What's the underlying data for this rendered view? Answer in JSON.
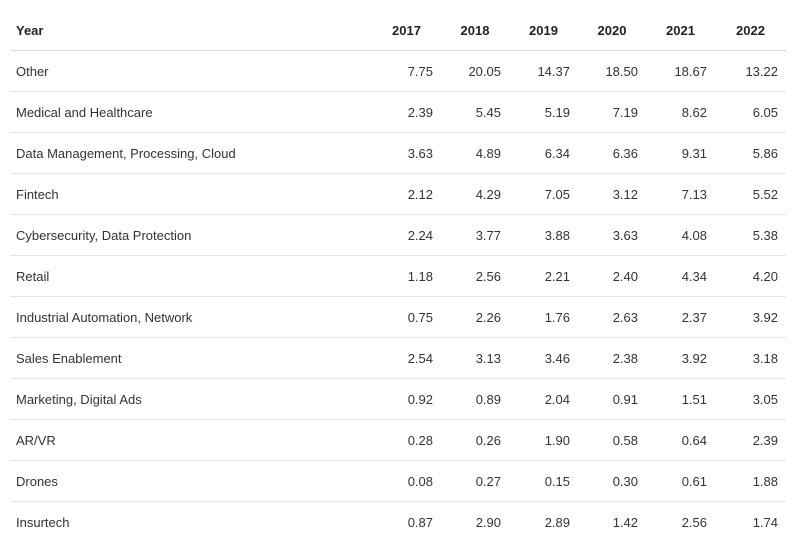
{
  "chart_data": {
    "type": "table",
    "header": {
      "label": "Year",
      "years": [
        "2017",
        "2018",
        "2019",
        "2020",
        "2021",
        "2022"
      ]
    },
    "rows": [
      {
        "label": "Other",
        "values": [
          "7.75",
          "20.05",
          "14.37",
          "18.50",
          "18.67",
          "13.22"
        ]
      },
      {
        "label": "Medical and Healthcare",
        "values": [
          "2.39",
          "5.45",
          "5.19",
          "7.19",
          "8.62",
          "6.05"
        ]
      },
      {
        "label": "Data Management, Processing, Cloud",
        "values": [
          "3.63",
          "4.89",
          "6.34",
          "6.36",
          "9.31",
          "5.86"
        ]
      },
      {
        "label": "Fintech",
        "values": [
          "2.12",
          "4.29",
          "7.05",
          "3.12",
          "7.13",
          "5.52"
        ]
      },
      {
        "label": "Cybersecurity, Data Protection",
        "values": [
          "2.24",
          "3.77",
          "3.88",
          "3.63",
          "4.08",
          "5.38"
        ]
      },
      {
        "label": "Retail",
        "values": [
          "1.18",
          "2.56",
          "2.21",
          "2.40",
          "4.34",
          "4.20"
        ]
      },
      {
        "label": "Industrial Automation, Network",
        "values": [
          "0.75",
          "2.26",
          "1.76",
          "2.63",
          "2.37",
          "3.92"
        ]
      },
      {
        "label": "Sales Enablement",
        "values": [
          "2.54",
          "3.13",
          "3.46",
          "2.38",
          "3.92",
          "3.18"
        ]
      },
      {
        "label": "Marketing, Digital Ads",
        "values": [
          "0.92",
          "0.89",
          "2.04",
          "0.91",
          "1.51",
          "3.05"
        ]
      },
      {
        "label": "AR/VR",
        "values": [
          "0.28",
          "0.26",
          "1.90",
          "0.58",
          "0.64",
          "2.39"
        ]
      },
      {
        "label": "Drones",
        "values": [
          "0.08",
          "0.27",
          "0.15",
          "0.30",
          "0.61",
          "1.88"
        ]
      },
      {
        "label": "Insurtech",
        "values": [
          "0.87",
          "2.90",
          "2.89",
          "1.42",
          "2.56",
          "1.74"
        ]
      }
    ]
  }
}
